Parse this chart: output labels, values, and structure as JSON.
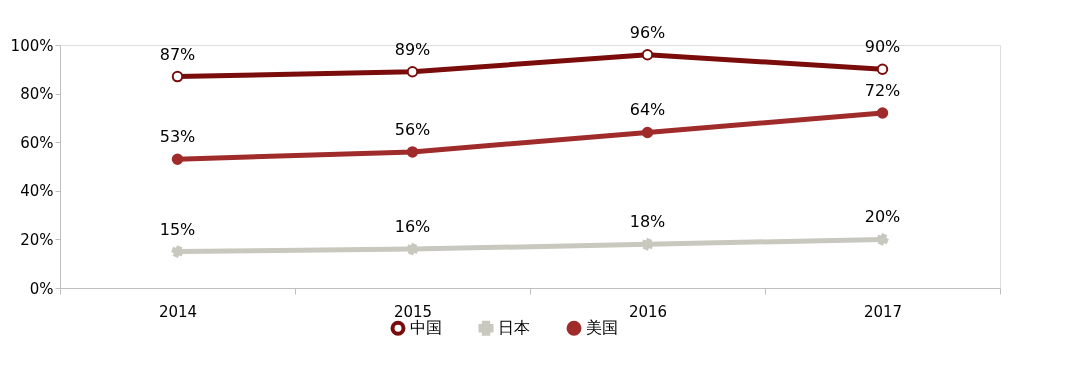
{
  "chart_data": {
    "type": "line",
    "categories": [
      "2014",
      "2015",
      "2016",
      "2017"
    ],
    "series": [
      {
        "name": "中国",
        "color": "#7b0c0c",
        "marker": "circle_open",
        "values": [
          87,
          89,
          96,
          90
        ],
        "value_labels": [
          "87%",
          "89%",
          "96%",
          "90%"
        ]
      },
      {
        "name": "日本",
        "color": "#c8c8be",
        "marker": "cross",
        "values": [
          15,
          16,
          18,
          20
        ],
        "value_labels": [
          "15%",
          "16%",
          "18%",
          "20%"
        ]
      },
      {
        "name": "美国",
        "color": "#a02b2b",
        "marker": "circle",
        "values": [
          53,
          56,
          64,
          72
        ],
        "value_labels": [
          "53%",
          "56%",
          "64%",
          "72%"
        ]
      }
    ],
    "ylim": [
      0,
      100
    ],
    "yticks": [
      {
        "value": 0,
        "label": "0%"
      },
      {
        "value": 20,
        "label": "20%"
      },
      {
        "value": 40,
        "label": "40%"
      },
      {
        "value": 60,
        "label": "60%"
      },
      {
        "value": 80,
        "label": "80%"
      },
      {
        "value": 100,
        "label": "100%"
      }
    ],
    "grid": false,
    "legend": "bottom",
    "line_style": "solid"
  }
}
